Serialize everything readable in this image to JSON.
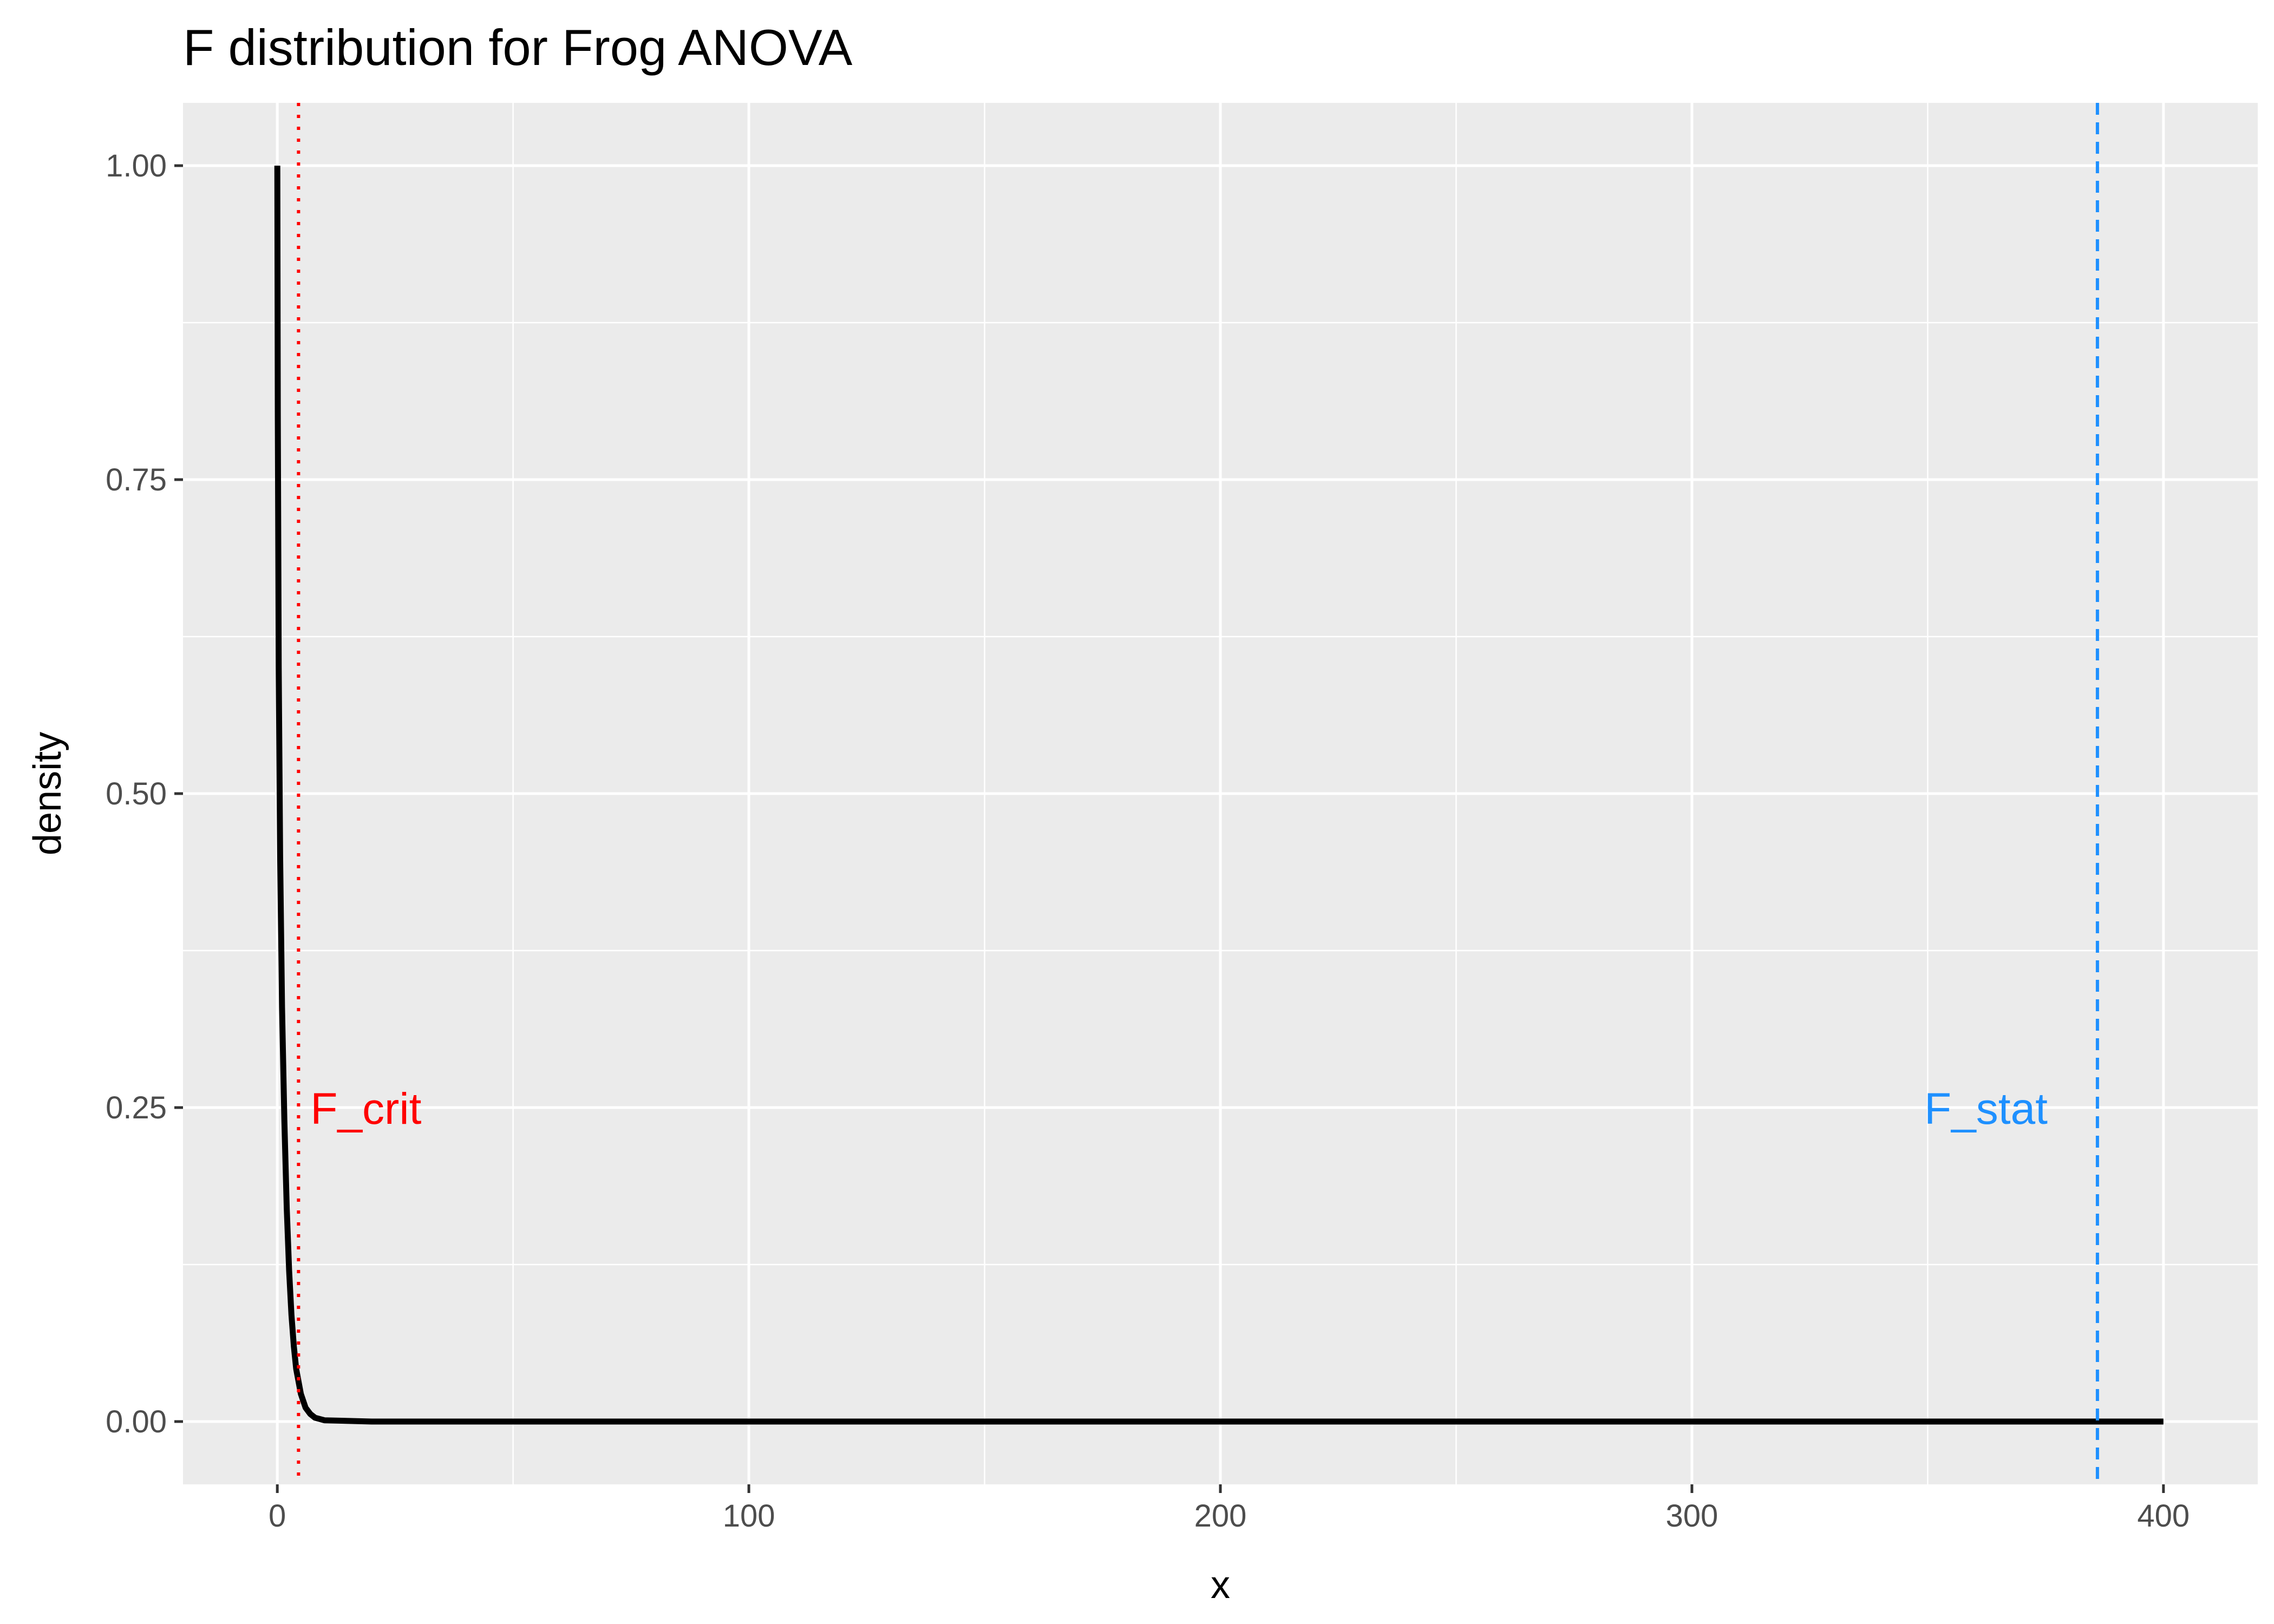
{
  "chart_data": {
    "type": "line",
    "title": "F distribution for Frog ANOVA",
    "xlabel": "x",
    "ylabel": "density",
    "xlim": [
      -20,
      420
    ],
    "ylim": [
      -0.05,
      1.05
    ],
    "x_ticks": [
      0,
      100,
      200,
      300,
      400
    ],
    "x_tick_labels": [
      "0",
      "100",
      "200",
      "300",
      "400"
    ],
    "x_minor_ticks": [
      50,
      150,
      250,
      350
    ],
    "y_ticks": [
      0,
      0.25,
      0.5,
      0.75,
      1.0
    ],
    "y_tick_labels": [
      "0.00",
      "0.25",
      "0.50",
      "0.75",
      "1.00"
    ],
    "y_minor_ticks": [
      0.125,
      0.375,
      0.625,
      0.875
    ],
    "grid": true,
    "background_color": "#ebebeb",
    "series": [
      {
        "color": "#000000",
        "x": [
          0,
          0.1,
          0.3,
          0.6,
          1.0,
          1.5,
          2.0,
          2.5,
          3.0,
          3.5,
          4.0,
          5.0,
          6.0,
          7.0,
          8.0,
          10.0,
          20.0,
          50.0,
          100.0,
          200.0,
          300.0,
          400.0
        ],
        "y": [
          1.0,
          0.8,
          0.6,
          0.45,
          0.33,
          0.24,
          0.17,
          0.12,
          0.085,
          0.06,
          0.042,
          0.022,
          0.011,
          0.006,
          0.003,
          0.001,
          0.0,
          0.0,
          0.0,
          0.0,
          0.0,
          0.0
        ]
      }
    ],
    "vlines": [
      {
        "x": 4.5,
        "color": "#ff0000",
        "style": "dotted",
        "label": "F_crit",
        "label_y": 0.25,
        "label_side": "right"
      },
      {
        "x": 386,
        "color": "#1e90ff",
        "style": "dashed",
        "label": "F_stat",
        "label_y": 0.25,
        "label_side": "left"
      }
    ]
  }
}
